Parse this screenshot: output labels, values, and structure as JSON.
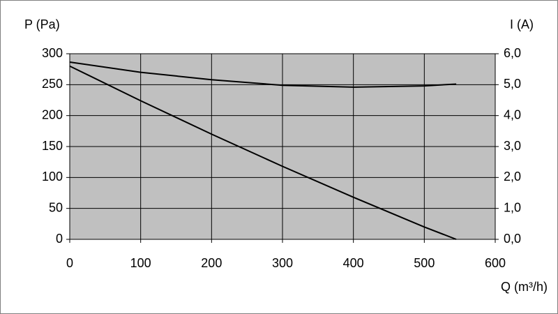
{
  "chart_data": {
    "type": "line",
    "y_label": "P (Pa)",
    "y2_label": "I (A)",
    "x_label": "Q (m³/h)",
    "x": [
      0,
      100,
      200,
      300,
      400,
      500,
      545
    ],
    "series": [
      {
        "color": "#000000",
        "values": [
          280,
          224,
          170,
          118,
          68,
          20,
          0
        ]
      },
      {
        "color": "#000000",
        "axis": "y2",
        "values": [
          5.73,
          5.4,
          5.16,
          4.98,
          4.92,
          4.96,
          5.02
        ]
      }
    ],
    "xlim": [
      0,
      600
    ],
    "xticks": [
      0,
      100,
      200,
      300,
      400,
      500,
      600
    ],
    "ylim": [
      0,
      300
    ],
    "yticks": [
      0,
      50,
      100,
      150,
      200,
      250,
      300
    ],
    "y2lim": [
      0,
      6
    ],
    "y2ticks": [
      {
        "value": 0,
        "label": "0,0"
      },
      {
        "value": 1,
        "label": "1,0"
      },
      {
        "value": 2,
        "label": "2,0"
      },
      {
        "value": 3,
        "label": "3,0"
      },
      {
        "value": 4,
        "label": "4,0"
      },
      {
        "value": 5,
        "label": "5,0"
      },
      {
        "value": 6,
        "label": "6,0"
      }
    ],
    "grid": true,
    "plot_background": "#c0c0c0"
  }
}
